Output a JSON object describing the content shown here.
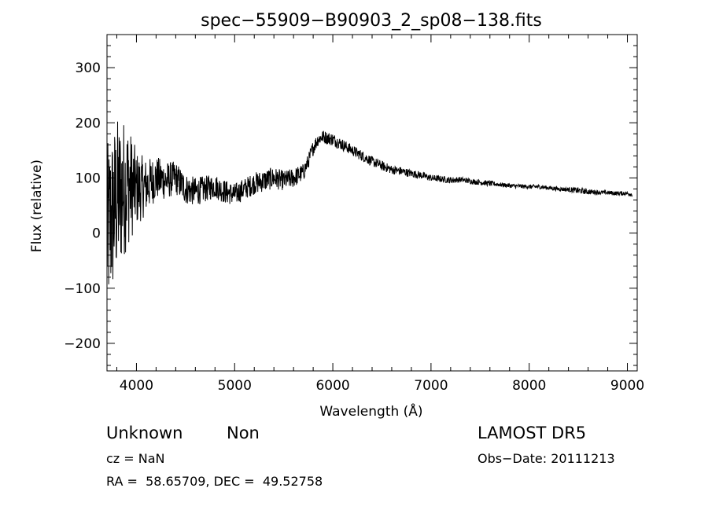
{
  "chart_data": {
    "type": "line",
    "title": "spec−55909−B90903_2_sp08−138.fits",
    "xlabel": "Wavelength (Å)",
    "ylabel": "Flux (relative)",
    "xlim": [
      3700,
      9100
    ],
    "ylim": [
      -250,
      360
    ],
    "grid": false,
    "xticks": [
      {
        "value": 4000,
        "label": "4000"
      },
      {
        "value": 5000,
        "label": "5000"
      },
      {
        "value": 6000,
        "label": "6000"
      },
      {
        "value": 7000,
        "label": "7000"
      },
      {
        "value": 8000,
        "label": "8000"
      },
      {
        "value": 9000,
        "label": "9000"
      }
    ],
    "yticks": [
      {
        "value": -200,
        "label": "−200"
      },
      {
        "value": -100,
        "label": "−100"
      },
      {
        "value": 0,
        "label": "0"
      },
      {
        "value": 100,
        "label": "100"
      },
      {
        "value": 200,
        "label": "200"
      },
      {
        "value": 300,
        "label": "300"
      }
    ],
    "series": [
      {
        "color": "#000000",
        "x": [
          3700,
          3800,
          3900,
          4000,
          4100,
          4200,
          4300,
          4400,
          4500,
          4600,
          4700,
          4800,
          4900,
          5000,
          5100,
          5200,
          5300,
          5400,
          5500,
          5600,
          5700,
          5750,
          5800,
          5850,
          5900,
          5950,
          6000,
          6050,
          6100,
          6200,
          6300,
          6400,
          6500,
          6600,
          6700,
          6800,
          6900,
          7000,
          7100,
          7200,
          7300,
          7400,
          7500,
          7600,
          7700,
          7800,
          7900,
          8000,
          8100,
          8200,
          8300,
          8400,
          8500,
          8600,
          8700,
          8800,
          8900,
          9000,
          9050
        ],
        "y": [
          0,
          60,
          90,
          80,
          85,
          100,
          95,
          100,
          80,
          75,
          80,
          85,
          75,
          70,
          80,
          90,
          95,
          100,
          95,
          100,
          110,
          130,
          155,
          170,
          175,
          172,
          170,
          165,
          160,
          150,
          140,
          130,
          122,
          115,
          112,
          108,
          105,
          100,
          98,
          96,
          97,
          94,
          92,
          90,
          88,
          86,
          85,
          84,
          84,
          82,
          80,
          79,
          77,
          75,
          74,
          73,
          72,
          72,
          70
        ],
        "noise": [
          160,
          150,
          120,
          70,
          50,
          40,
          35,
          30,
          28,
          26,
          24,
          22,
          22,
          20,
          20,
          20,
          20,
          20,
          18,
          18,
          16,
          14,
          14,
          12,
          12,
          12,
          12,
          11,
          11,
          10,
          10,
          9,
          9,
          8,
          8,
          7,
          7,
          6,
          6,
          6,
          5,
          5,
          5,
          5,
          4,
          4,
          4,
          4,
          4,
          4,
          4,
          4,
          6,
          5,
          4,
          4,
          4,
          4,
          4
        ]
      }
    ]
  },
  "info": {
    "object_class": "Unknown",
    "subclass": "Non",
    "cz": "cz = NaN",
    "radec": "RA =  58.65709, DEC =  49.52758",
    "survey": "LAMOST DR5",
    "obs_date": "Obs−Date: 20111213"
  }
}
